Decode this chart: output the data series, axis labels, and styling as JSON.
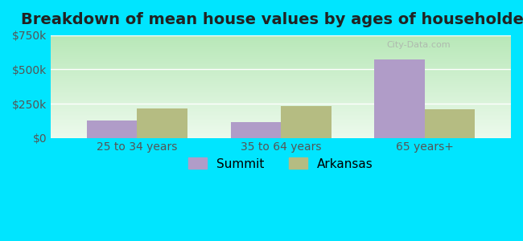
{
  "title": "Breakdown of mean house values by ages of householders",
  "categories": [
    "25 to 34 years",
    "35 to 64 years",
    "65 years+"
  ],
  "summit_values": [
    125000,
    115000,
    575000
  ],
  "arkansas_values": [
    215000,
    230000,
    210000
  ],
  "summit_color": "#b09cc8",
  "arkansas_color": "#b5bc82",
  "ylim": [
    0,
    750000
  ],
  "yticks": [
    0,
    250000,
    500000,
    750000
  ],
  "ytick_labels": [
    "$0",
    "$250k",
    "$500k",
    "$750k"
  ],
  "legend_labels": [
    "Summit",
    "Arkansas"
  ],
  "bg_top": "#b8e8b8",
  "bg_bottom": "#edfaed",
  "outer_background": "#00e5ff",
  "bar_width": 0.35,
  "title_fontsize": 14,
  "axis_label_fontsize": 10,
  "legend_fontsize": 11
}
